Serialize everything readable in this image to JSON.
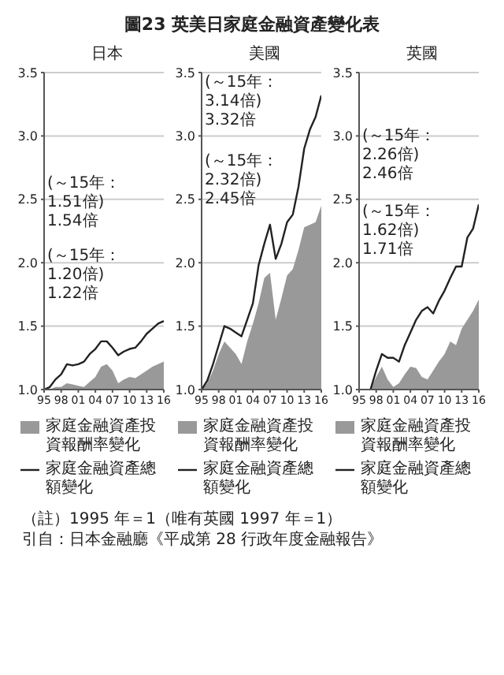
{
  "chart_data": [
    {
      "type": "line",
      "title": "圖23 英美日家庭金融資產變化表",
      "subtitle": "日本",
      "x": [
        1995,
        1996,
        1997,
        1998,
        1999,
        2000,
        2001,
        2002,
        2003,
        2004,
        2005,
        2006,
        2007,
        2008,
        2009,
        2010,
        2011,
        2012,
        2013,
        2014,
        2015,
        2016
      ],
      "series": [
        {
          "type": "area",
          "name": "家庭金融資產投資報酬率變化",
          "color": "#999999",
          "values": [
            1.0,
            1.0,
            1.02,
            1.02,
            1.05,
            1.04,
            1.03,
            1.02,
            1.06,
            1.1,
            1.18,
            1.2,
            1.15,
            1.05,
            1.08,
            1.1,
            1.09,
            1.12,
            1.15,
            1.18,
            1.2,
            1.22
          ]
        },
        {
          "name": "家庭金融資產總額變化",
          "color": "#222222",
          "values": [
            1.0,
            1.02,
            1.08,
            1.12,
            1.2,
            1.19,
            1.2,
            1.22,
            1.28,
            1.32,
            1.38,
            1.38,
            1.33,
            1.27,
            1.3,
            1.32,
            1.33,
            1.38,
            1.44,
            1.48,
            1.52,
            1.54
          ]
        }
      ],
      "xlim": [
        1995,
        2016
      ],
      "xticks": [
        {
          "value": 1995,
          "label": "95"
        },
        {
          "value": 1998,
          "label": "98"
        },
        {
          "value": 2001,
          "label": "01"
        },
        {
          "value": 2004,
          "label": "04"
        },
        {
          "value": 2007,
          "label": "07"
        },
        {
          "value": 2010,
          "label": "10"
        },
        {
          "value": 2013,
          "label": "13"
        },
        {
          "value": 2016,
          "label": "16"
        }
      ],
      "ylim": [
        1,
        3.5
      ],
      "yticks": [
        {
          "value": 1,
          "label": "1.0"
        },
        {
          "value": 1.5,
          "label": "1.5"
        },
        {
          "value": 2,
          "label": "2.0"
        },
        {
          "value": 2.5,
          "label": "2.5"
        },
        {
          "value": 3,
          "label": "3.0"
        },
        {
          "value": 3.5,
          "label": "3.5"
        }
      ],
      "grid": "y",
      "legend": "bottom",
      "annotations": [
        "(～15年：1.51倍) 1.54倍",
        "(～15年：1.20倍) 1.22倍"
      ]
    },
    {
      "type": "line",
      "subtitle": "美國",
      "x": [
        1995,
        1996,
        1997,
        1998,
        1999,
        2000,
        2001,
        2002,
        2003,
        2004,
        2005,
        2006,
        2007,
        2008,
        2009,
        2010,
        2011,
        2012,
        2013,
        2014,
        2015,
        2016
      ],
      "series": [
        {
          "type": "area",
          "name": "家庭金融資產投資報酬率變化",
          "color": "#999999",
          "values": [
            1.0,
            1.05,
            1.15,
            1.28,
            1.38,
            1.33,
            1.28,
            1.2,
            1.38,
            1.52,
            1.68,
            1.88,
            1.92,
            1.55,
            1.72,
            1.9,
            1.95,
            2.1,
            2.28,
            2.3,
            2.32,
            2.45
          ]
        },
        {
          "name": "家庭金融資產總額變化",
          "color": "#222222",
          "values": [
            1.0,
            1.07,
            1.2,
            1.35,
            1.5,
            1.48,
            1.45,
            1.42,
            1.55,
            1.68,
            1.98,
            2.15,
            2.3,
            2.03,
            2.15,
            2.32,
            2.38,
            2.6,
            2.9,
            3.05,
            3.15,
            3.32
          ]
        }
      ],
      "xlim": [
        1995,
        2016
      ],
      "xticks": [
        {
          "value": 1995,
          "label": "95"
        },
        {
          "value": 1998,
          "label": "98"
        },
        {
          "value": 2001,
          "label": "01"
        },
        {
          "value": 2004,
          "label": "04"
        },
        {
          "value": 2007,
          "label": "07"
        },
        {
          "value": 2010,
          "label": "10"
        },
        {
          "value": 2013,
          "label": "13"
        },
        {
          "value": 2016,
          "label": "16"
        }
      ],
      "ylim": [
        1,
        3.5
      ],
      "yticks": [
        {
          "value": 1,
          "label": "1.0"
        },
        {
          "value": 1.5,
          "label": "1.5"
        },
        {
          "value": 2,
          "label": "2.0"
        },
        {
          "value": 2.5,
          "label": "2.5"
        },
        {
          "value": 3,
          "label": "3.0"
        },
        {
          "value": 3.5,
          "label": "3.5"
        }
      ],
      "grid": "y",
      "legend": "bottom",
      "annotations": [
        "(～15年：3.14倍) 3.32倍",
        "(～15年：2.32倍) 2.45倍"
      ]
    },
    {
      "type": "line",
      "subtitle": "英國",
      "x": [
        1997,
        1998,
        1999,
        2000,
        2001,
        2002,
        2003,
        2004,
        2005,
        2006,
        2007,
        2008,
        2009,
        2010,
        2011,
        2012,
        2013,
        2014,
        2015,
        2016
      ],
      "series": [
        {
          "type": "area",
          "name": "家庭金融資產投資報酬率變化",
          "color": "#999999",
          "values": [
            1.0,
            1.1,
            1.18,
            1.08,
            1.02,
            1.05,
            1.12,
            1.18,
            1.17,
            1.1,
            1.08,
            1.15,
            1.22,
            1.28,
            1.38,
            1.35,
            1.48,
            1.55,
            1.62,
            1.71
          ]
        },
        {
          "name": "家庭金融資產總額變化",
          "color": "#222222",
          "values": [
            1.0,
            1.15,
            1.28,
            1.25,
            1.25,
            1.22,
            1.35,
            1.45,
            1.55,
            1.62,
            1.65,
            1.6,
            1.7,
            1.78,
            1.88,
            1.97,
            1.97,
            2.2,
            2.27,
            2.46
          ]
        }
      ],
      "xlim": [
        1995,
        2016
      ],
      "xticks": [
        {
          "value": 1995,
          "label": "95"
        },
        {
          "value": 1998,
          "label": "98"
        },
        {
          "value": 2001,
          "label": "01"
        },
        {
          "value": 2004,
          "label": "04"
        },
        {
          "value": 2007,
          "label": "07"
        },
        {
          "value": 2010,
          "label": "10"
        },
        {
          "value": 2013,
          "label": "13"
        },
        {
          "value": 2016,
          "label": "16"
        }
      ],
      "ylim": [
        1,
        3.5
      ],
      "yticks": [
        {
          "value": 1,
          "label": "1.0"
        },
        {
          "value": 1.5,
          "label": "1.5"
        },
        {
          "value": 2,
          "label": "2.0"
        },
        {
          "value": 2.5,
          "label": "2.5"
        },
        {
          "value": 3,
          "label": "3.0"
        },
        {
          "value": 3.5,
          "label": "3.5"
        }
      ],
      "grid": "y",
      "legend": "bottom",
      "annotations": [
        "(～15年：2.26倍) 2.46倍",
        "(～15年：1.62倍) 1.71倍",
        "（註）1995 年＝1（唯有英國 1997 年＝1）",
        "引自：日本金融廳《平成第 28 行政年度金融報告》"
      ]
    }
  ]
}
